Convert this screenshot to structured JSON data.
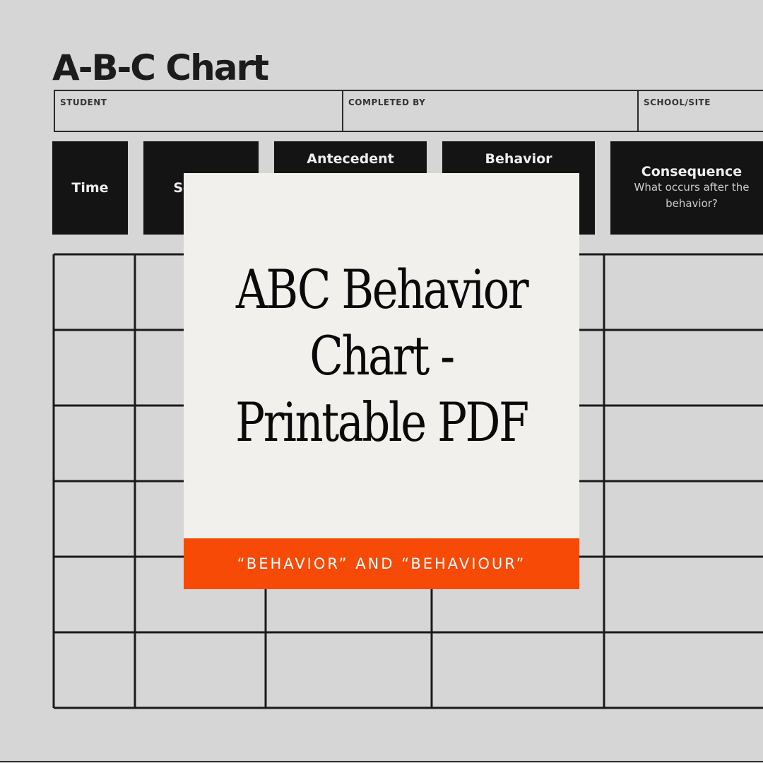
{
  "chart_title": "A-B-C Chart",
  "info_fields": [
    "STUDENT",
    "COMPLETED BY",
    "SCHOOL/SITE"
  ],
  "columns": [
    {
      "heading": "Time",
      "sub": ""
    },
    {
      "heading": "Setting",
      "sub": ""
    },
    {
      "heading": "Antecedent",
      "sub": ""
    },
    {
      "heading": "Behavior",
      "sub": ""
    },
    {
      "heading": "Consequence",
      "sub": "What occurs after the behavior?"
    }
  ],
  "overlay": {
    "title": "ABC Behavior Chart - Printable PDF",
    "subtitle": "“BEHAVIOR” AND “BEHAVIOUR”"
  },
  "colors": {
    "background": "#d6d6d6",
    "header": "#141414",
    "card": "#f1f0ed",
    "accent": "#f74a06"
  }
}
